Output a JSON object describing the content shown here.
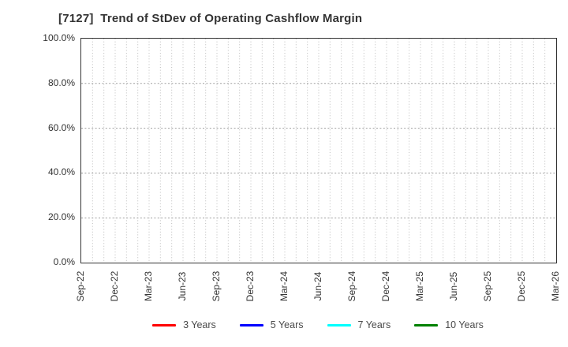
{
  "chart_data": {
    "type": "line",
    "title": "[7127]  Trend of StDev of Operating Cashflow Margin",
    "x_tick_labels": [
      "Sep-22",
      "Dec-22",
      "Mar-23",
      "Jun-23",
      "Sep-23",
      "Dec-23",
      "Mar-24",
      "Jun-24",
      "Sep-24",
      "Dec-24",
      "Mar-25",
      "Jun-25",
      "Sep-25",
      "Dec-25",
      "Mar-26"
    ],
    "x_minor_gridlines_per_quarter": 3,
    "y_tick_labels_top_to_bottom": [
      "100.0%",
      "80.0%",
      "60.0%",
      "40.0%",
      "20.0%",
      "0.0%"
    ],
    "ylim": [
      0,
      100
    ],
    "y_unit": "%",
    "grid": true,
    "plot_empty": true,
    "legend_position": "bottom",
    "series": [
      {
        "name": "3 Years",
        "color": "#ff0000",
        "values": []
      },
      {
        "name": "5 Years",
        "color": "#0000ff",
        "values": []
      },
      {
        "name": "7 Years",
        "color": "#00ffff",
        "values": []
      },
      {
        "name": "10 Years",
        "color": "#008000",
        "values": []
      }
    ]
  },
  "colors": {
    "background": "#ffffff",
    "frame": "#333333",
    "grid_vertical": "#bdbdbd",
    "grid_horizontal": "#9f9f9f",
    "title_text": "#333333",
    "tick_text": "#333333",
    "legend_text": "#4a4a4a"
  }
}
